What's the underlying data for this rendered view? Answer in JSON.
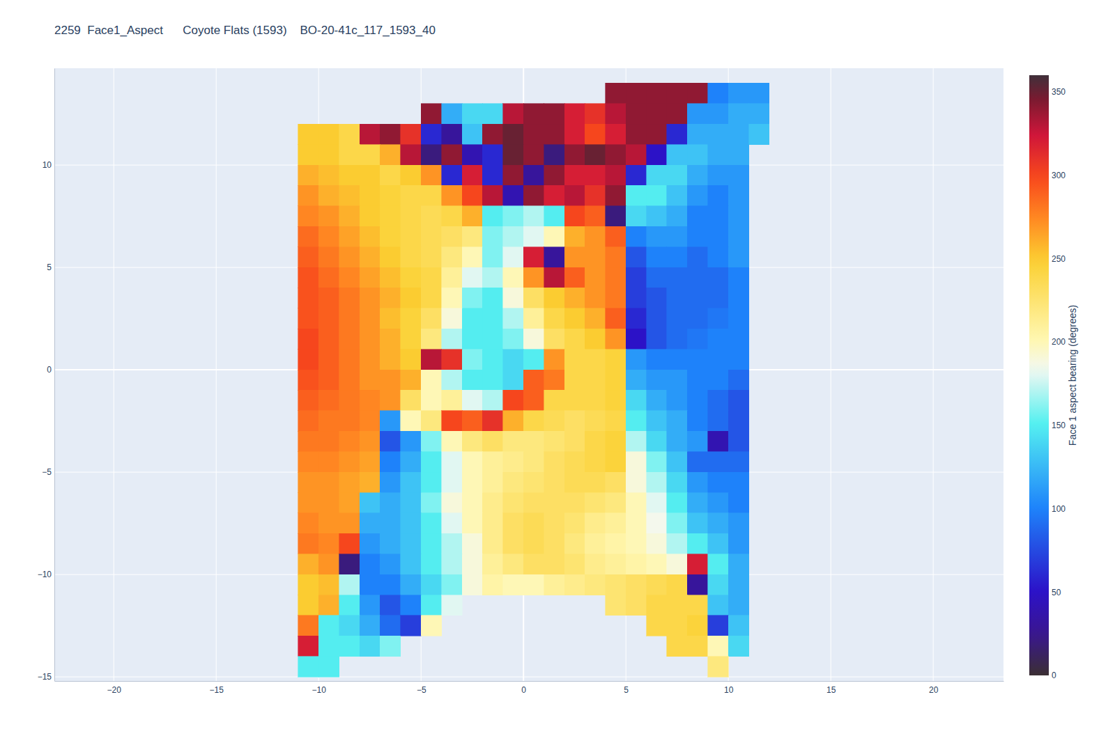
{
  "chart_data": {
    "type": "heatmap",
    "title": "2259  Face1_Aspect      Coyote Flats (1593)    BO-20-41c_117_1593_40",
    "colorbar_title": "Face 1 aspect bearing (degrees)",
    "grid": true,
    "xlim": [
      -22.9,
      23.43
    ],
    "ylim": [
      -15.2,
      14.73
    ],
    "xticks": [
      {
        "value": -20,
        "label": "−20"
      },
      {
        "value": -15,
        "label": "−15"
      },
      {
        "value": -10,
        "label": "−10"
      },
      {
        "value": -5,
        "label": "−5"
      },
      0,
      5,
      10,
      15,
      20
    ],
    "yticks": [
      {
        "value": -15,
        "label": "−15"
      },
      {
        "value": -10,
        "label": "−10"
      },
      {
        "value": -5,
        "label": "−5"
      },
      0,
      5,
      10
    ],
    "zlim": [
      0,
      360
    ],
    "zticks": [
      0,
      50,
      100,
      150,
      200,
      250,
      300,
      350
    ],
    "x": [
      -10.5,
      -9.5,
      -8.5,
      -7.5,
      -6.5,
      -5.5,
      -4.5,
      -3.5,
      -2.5,
      -1.5,
      -0.5,
      0.5,
      1.5,
      2.5,
      3.5,
      4.5,
      5.5,
      6.5,
      7.5,
      8.5,
      9.5,
      10.5,
      11.5
    ],
    "y": [
      13.5,
      12.5,
      11.5,
      10.5,
      9.5,
      8.5,
      7.5,
      6.5,
      5.5,
      4.5,
      3.5,
      2.5,
      1.5,
      0.5,
      -0.5,
      -1.5,
      -2.5,
      -3.5,
      -4.5,
      -5.5,
      -6.5,
      -7.5,
      -8.5,
      -9.5,
      -10.5,
      -11.5,
      -12.5,
      -13.5,
      -14.5
    ],
    "z": [
      [
        null,
        null,
        null,
        null,
        null,
        null,
        null,
        null,
        null,
        null,
        null,
        null,
        null,
        null,
        null,
        340,
        340,
        340,
        340,
        340,
        100,
        110,
        110
      ],
      [
        null,
        null,
        null,
        null,
        null,
        null,
        340,
        120,
        140,
        140,
        330,
        340,
        340,
        320,
        310,
        330,
        340,
        340,
        340,
        110,
        110,
        120,
        120
      ],
      [
        250,
        250,
        240,
        330,
        340,
        310,
        60,
        30,
        130,
        340,
        350,
        340,
        340,
        320,
        300,
        320,
        340,
        340,
        60,
        120,
        120,
        120,
        130
      ],
      [
        250,
        250,
        240,
        240,
        260,
        330,
        20,
        340,
        40,
        60,
        350,
        340,
        20,
        340,
        350,
        340,
        330,
        50,
        130,
        130,
        120,
        120,
        null
      ],
      [
        260,
        255,
        250,
        250,
        240,
        250,
        270,
        60,
        320,
        60,
        340,
        30,
        340,
        320,
        320,
        330,
        60,
        140,
        140,
        120,
        110,
        110,
        null
      ],
      [
        270,
        260,
        255,
        250,
        245,
        240,
        240,
        270,
        300,
        330,
        40,
        340,
        320,
        330,
        310,
        340,
        150,
        150,
        130,
        110,
        100,
        110,
        null
      ],
      [
        275,
        270,
        260,
        250,
        245,
        240,
        235,
        240,
        260,
        150,
        160,
        170,
        150,
        300,
        290,
        20,
        140,
        130,
        120,
        100,
        100,
        110,
        null
      ],
      [
        285,
        275,
        265,
        255,
        245,
        240,
        235,
        230,
        220,
        160,
        170,
        180,
        200,
        260,
        270,
        290,
        100,
        110,
        110,
        100,
        100,
        110,
        null
      ],
      [
        290,
        280,
        270,
        260,
        250,
        240,
        235,
        220,
        200,
        160,
        180,
        320,
        30,
        270,
        270,
        280,
        80,
        100,
        100,
        90,
        100,
        110,
        null
      ],
      [
        295,
        285,
        275,
        265,
        255,
        245,
        240,
        210,
        180,
        170,
        200,
        270,
        330,
        290,
        270,
        280,
        70,
        90,
        90,
        90,
        90,
        100,
        null
      ],
      [
        295,
        290,
        280,
        270,
        260,
        250,
        240,
        200,
        160,
        150,
        190,
        230,
        250,
        260,
        270,
        280,
        70,
        80,
        90,
        90,
        90,
        100,
        null
      ],
      [
        295,
        290,
        280,
        270,
        255,
        245,
        230,
        190,
        150,
        150,
        170,
        210,
        240,
        250,
        260,
        290,
        60,
        80,
        90,
        90,
        95,
        100,
        null
      ],
      [
        300,
        290,
        280,
        270,
        260,
        245,
        220,
        170,
        150,
        150,
        160,
        190,
        230,
        240,
        250,
        270,
        50,
        80,
        90,
        95,
        100,
        100,
        null
      ],
      [
        300,
        290,
        280,
        270,
        260,
        250,
        330,
        310,
        160,
        150,
        140,
        150,
        270,
        240,
        240,
        245,
        110,
        100,
        100,
        100,
        100,
        100,
        null
      ],
      [
        295,
        290,
        280,
        270,
        270,
        260,
        200,
        170,
        150,
        150,
        140,
        290,
        280,
        240,
        240,
        245,
        120,
        110,
        110,
        100,
        100,
        90,
        null
      ],
      [
        290,
        285,
        280,
        275,
        270,
        230,
        200,
        210,
        180,
        170,
        300,
        290,
        240,
        240,
        240,
        245,
        140,
        120,
        110,
        100,
        90,
        80,
        null
      ],
      [
        285,
        280,
        280,
        275,
        110,
        200,
        220,
        300,
        290,
        310,
        260,
        240,
        235,
        230,
        235,
        240,
        150,
        130,
        120,
        100,
        90,
        80,
        null
      ],
      [
        280,
        280,
        275,
        270,
        80,
        110,
        160,
        200,
        220,
        230,
        220,
        220,
        225,
        230,
        240,
        245,
        170,
        140,
        120,
        110,
        40,
        80,
        null
      ],
      [
        275,
        275,
        270,
        265,
        100,
        120,
        150,
        180,
        200,
        210,
        215,
        220,
        230,
        235,
        240,
        245,
        190,
        160,
        130,
        90,
        90,
        90,
        null
      ],
      [
        270,
        270,
        265,
        260,
        110,
        130,
        150,
        180,
        200,
        210,
        220,
        225,
        230,
        235,
        235,
        230,
        190,
        170,
        140,
        110,
        100,
        100,
        null
      ],
      [
        270,
        270,
        265,
        130,
        120,
        130,
        160,
        190,
        200,
        215,
        225,
        230,
        230,
        230,
        225,
        220,
        200,
        180,
        150,
        120,
        110,
        100,
        null
      ],
      [
        275,
        270,
        270,
        120,
        120,
        130,
        150,
        180,
        200,
        215,
        230,
        235,
        230,
        225,
        215,
        210,
        200,
        185,
        160,
        130,
        120,
        110,
        null
      ],
      [
        280,
        275,
        300,
        110,
        120,
        130,
        150,
        170,
        190,
        215,
        230,
        235,
        230,
        220,
        210,
        205,
        200,
        190,
        170,
        150,
        130,
        110,
        null
      ],
      [
        260,
        270,
        20,
        100,
        110,
        130,
        150,
        170,
        190,
        210,
        220,
        230,
        230,
        225,
        215,
        210,
        205,
        200,
        190,
        320,
        150,
        120,
        null
      ],
      [
        250,
        255,
        170,
        100,
        100,
        120,
        140,
        160,
        190,
        205,
        200,
        200,
        210,
        215,
        220,
        225,
        230,
        235,
        240,
        30,
        140,
        120,
        null
      ],
      [
        250,
        260,
        150,
        110,
        80,
        100,
        150,
        180,
        null,
        null,
        null,
        null,
        null,
        null,
        null,
        225,
        230,
        240,
        240,
        240,
        130,
        120,
        null
      ],
      [
        280,
        150,
        140,
        120,
        90,
        70,
        200,
        null,
        null,
        null,
        null,
        null,
        null,
        null,
        null,
        null,
        null,
        240,
        240,
        245,
        70,
        130,
        null
      ],
      [
        320,
        150,
        150,
        140,
        160,
        null,
        null,
        null,
        null,
        null,
        null,
        null,
        null,
        null,
        null,
        null,
        null,
        null,
        240,
        240,
        200,
        140,
        null
      ],
      [
        150,
        150,
        null,
        null,
        null,
        null,
        null,
        null,
        null,
        null,
        null,
        null,
        null,
        null,
        null,
        null,
        null,
        null,
        null,
        null,
        220,
        null,
        null
      ]
    ]
  }
}
